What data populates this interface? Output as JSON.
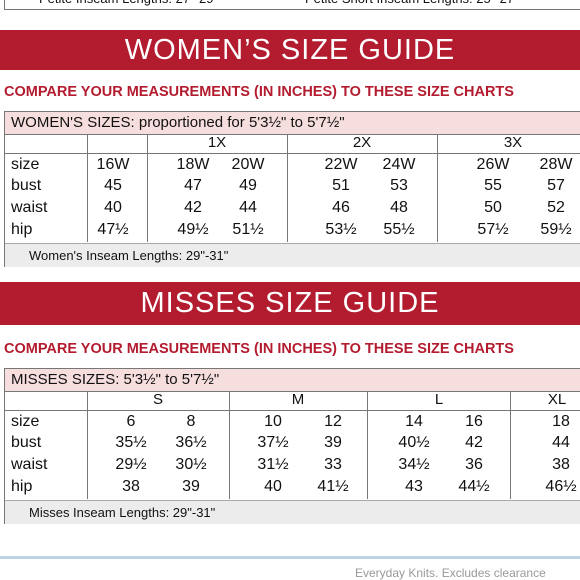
{
  "top_strip": [
    "Petite Inseam Lengths: 27\"-29\"",
    "Petite Short Inseam Lengths: 25\"-27\""
  ],
  "sections": [
    {
      "banner": "WOMEN’S SIZE GUIDE",
      "subheading": "COMPARE YOUR MEASUREMENTS (IN INCHES) TO THESE SIZE CHARTS",
      "table": {
        "title": "WOMEN'S SIZES: proportioned for 5'3½\" to 5'7½\"",
        "groups": [
          "1X",
          "2X",
          "3X"
        ],
        "rows": [
          {
            "label": "size",
            "values": [
              "16W",
              "18W",
              "20W",
              "22W",
              "24W",
              "26W",
              "28W"
            ]
          },
          {
            "label": "bust",
            "values": [
              "45",
              "47",
              "49",
              "51",
              "53",
              "55",
              "57"
            ]
          },
          {
            "label": "waist",
            "values": [
              "40",
              "42",
              "44",
              "46",
              "48",
              "50",
              "52"
            ]
          },
          {
            "label": "hip",
            "values": [
              "47½",
              "49½",
              "51½",
              "53½",
              "55½",
              "57½",
              "59½"
            ]
          }
        ],
        "footer": "Women's Inseam Lengths: 29\"-31\""
      }
    },
    {
      "banner": "MISSES SIZE GUIDE",
      "subheading": "COMPARE YOUR MEASUREMENTS (IN INCHES) TO THESE SIZE CHARTS",
      "table": {
        "title": "MISSES SIZES: 5'3½\" to 5'7½\"",
        "groups": [
          "S",
          "M",
          "L",
          "XL"
        ],
        "rows": [
          {
            "label": "size",
            "values": [
              "6",
              "8",
              "10",
              "12",
              "14",
              "16",
              "18"
            ]
          },
          {
            "label": "bust",
            "values": [
              "35½",
              "36½",
              "37½",
              "39",
              "40½",
              "42",
              "44"
            ]
          },
          {
            "label": "waist",
            "values": [
              "29½",
              "30½",
              "31½",
              "33",
              "34½",
              "36",
              "38"
            ]
          },
          {
            "label": "hip",
            "values": [
              "38",
              "39",
              "40",
              "41½",
              "43",
              "44½",
              "46½"
            ]
          }
        ],
        "footer": "Misses Inseam Lengths: 29\"-31\""
      }
    }
  ],
  "footer_note": "Everyday Knits. Excludes clearance"
}
